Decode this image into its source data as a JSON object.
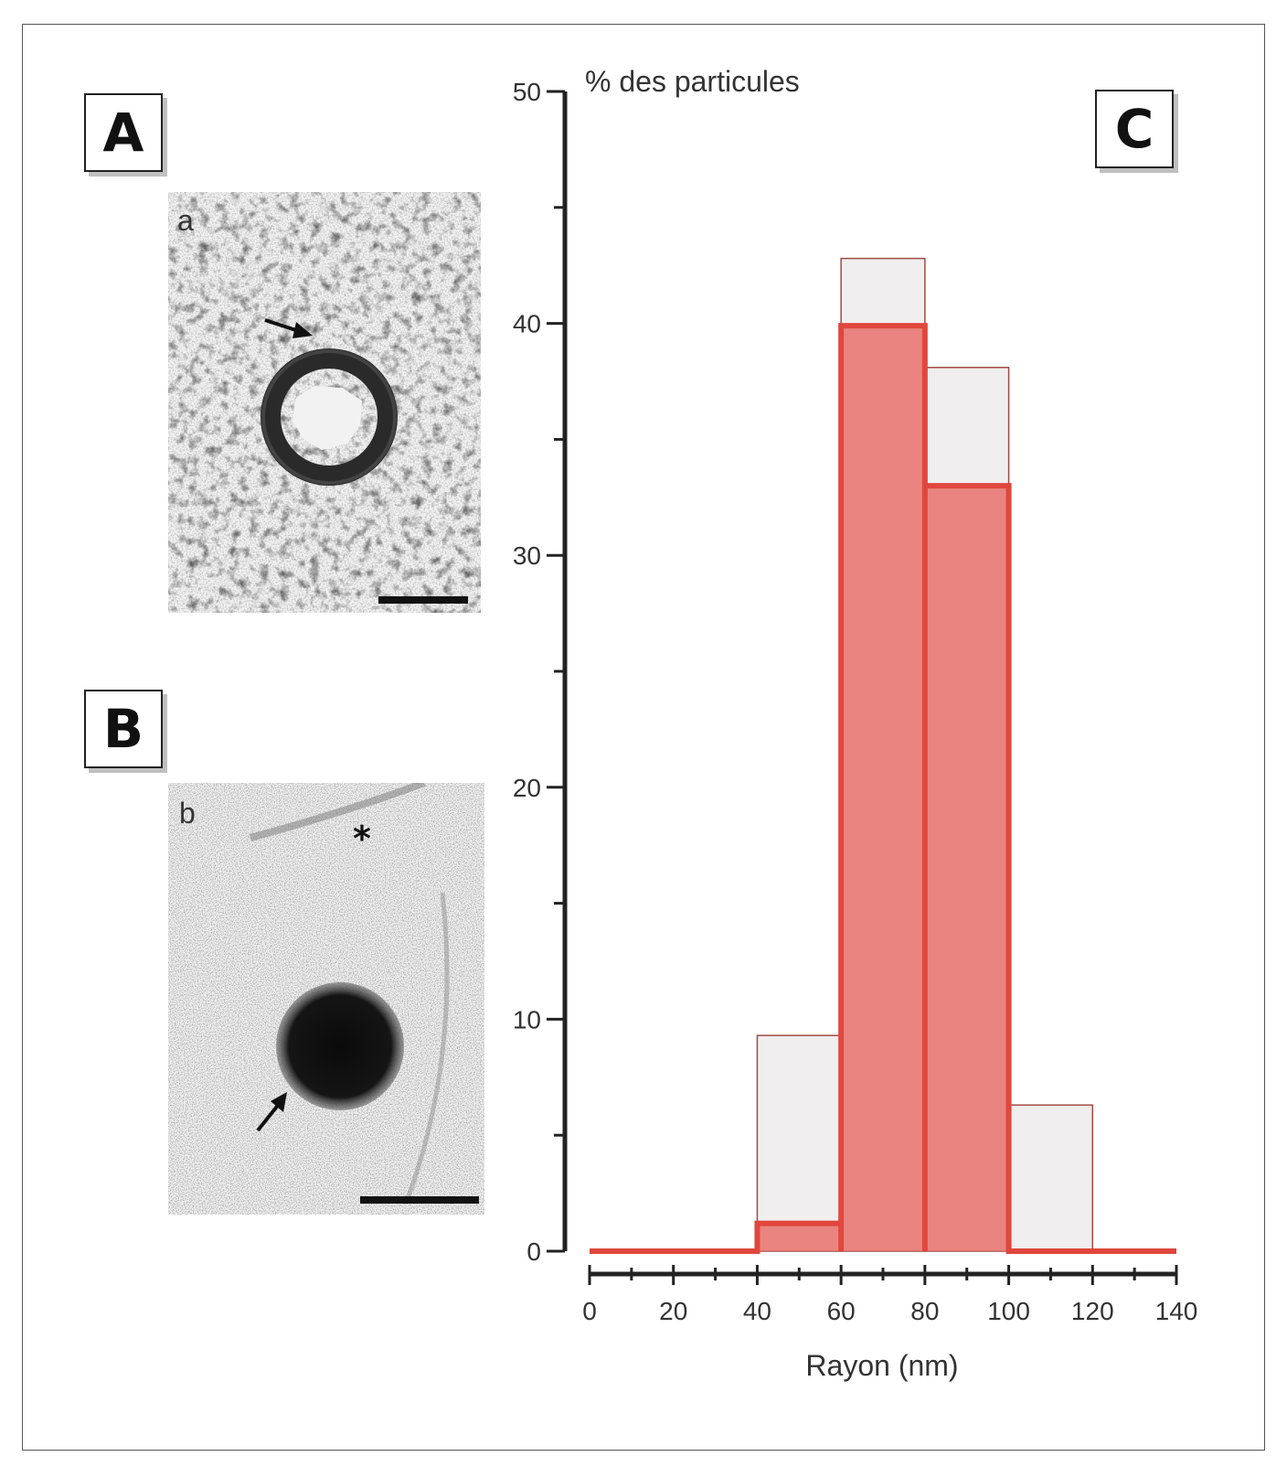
{
  "panels": {
    "a_label": "A",
    "b_label": "B",
    "c_label": "C",
    "a_sublabel": "a",
    "b_sublabel": "b",
    "b_marker": "*"
  },
  "colors": {
    "fill_red": "#e8716c",
    "line_red": "#e0473c",
    "grey_fill": "#f0eeee",
    "grey_edge": "#a04a44"
  },
  "chart_data": {
    "type": "bar",
    "title": "",
    "ylabel": "% des particules",
    "xlabel": "Rayon (nm)",
    "xlim": [
      0,
      140
    ],
    "ylim": [
      0,
      50
    ],
    "x_ticks": [
      "0",
      "20",
      "40",
      "60",
      "80",
      "100",
      "120",
      "140"
    ],
    "y_ticks": [
      "0",
      "10",
      "20",
      "30",
      "40",
      "50"
    ],
    "bin_width": 20,
    "series": [
      {
        "bin_starts": [
          40,
          60,
          80,
          100
        ],
        "values": [
          9.3,
          42.8,
          38.1,
          6.3
        ]
      },
      {
        "bin_starts": [
          40,
          60,
          80,
          100
        ],
        "values": [
          1.2,
          39.9,
          33.0,
          0
        ]
      }
    ]
  }
}
